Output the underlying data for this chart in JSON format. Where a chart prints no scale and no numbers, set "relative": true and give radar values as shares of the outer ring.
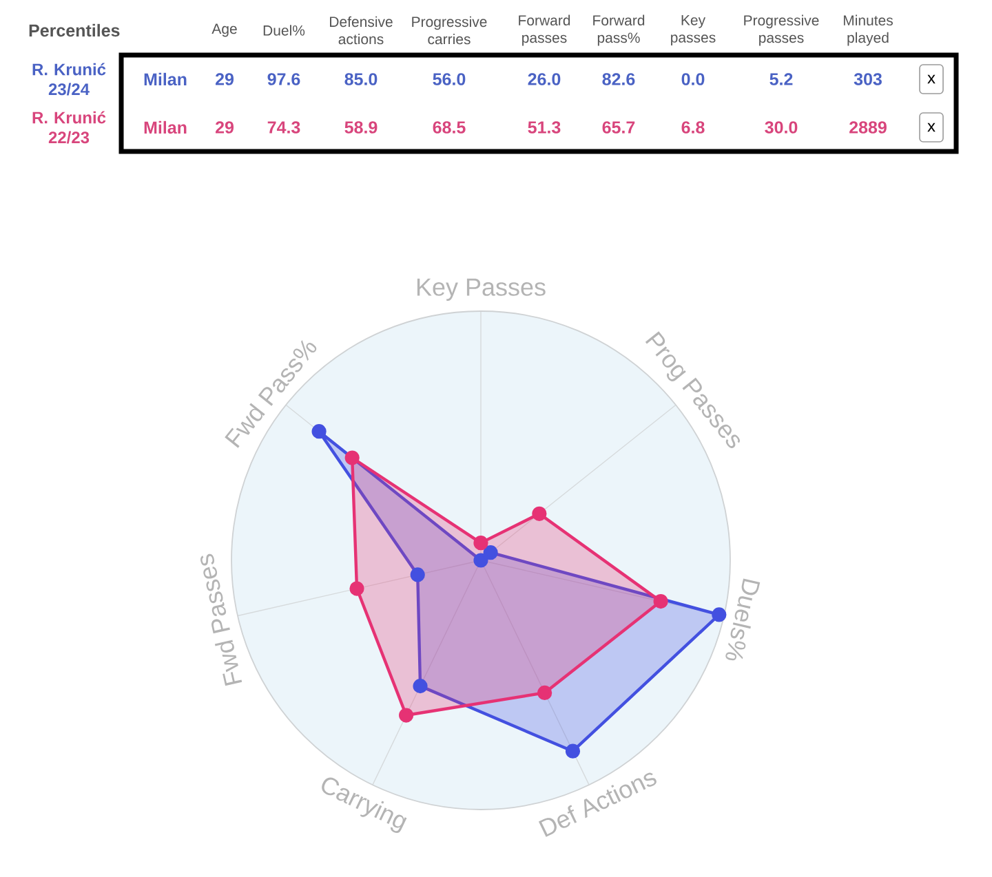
{
  "chart_data": [
    {
      "type": "other",
      "title": "Percentiles",
      "categories": [
        "Age",
        "Duel%",
        "Defensive actions",
        "Progressive carries",
        "Forward passes",
        "Forward pass%",
        "Key passes",
        "Progressive passes",
        "Minutes played"
      ],
      "series": [
        {
          "name": "R. Krunić 23/24",
          "color": "#4a62c4",
          "values": [
            29,
            97.6,
            85.0,
            56.0,
            26.0,
            82.6,
            0.0,
            5.2,
            303
          ],
          "value_labels": [
            "29",
            "97.6",
            "85.0",
            "56.0",
            "26.0",
            "82.6",
            "0.0",
            "5.2",
            "303"
          ]
        },
        {
          "name": "R. Krunić 22/23",
          "color": "#d8457c",
          "values": [
            29,
            74.3,
            58.9,
            68.5,
            51.3,
            65.7,
            6.8,
            30.0,
            2889
          ],
          "value_labels": [
            "29",
            "74.3",
            "58.9",
            "68.5",
            "51.3",
            "65.7",
            "6.8",
            "30.0",
            "2889"
          ]
        }
      ],
      "annotations": [
        "Milan",
        "Milan",
        "x",
        "x"
      ]
    },
    {
      "type": "radar",
      "categories": [
        "Key Passes",
        "Prog Passes",
        "Duels%",
        "Def Actions",
        "Carrying",
        "Fwd Passes",
        "Fwd Pass%"
      ],
      "relative": true,
      "series": [
        {
          "color": "#4350e0",
          "values": [
            0.0,
            0.05,
            0.98,
            0.85,
            0.56,
            0.26,
            0.83
          ]
        },
        {
          "color": "#e63274",
          "values": [
            0.07,
            0.3,
            0.74,
            0.59,
            0.69,
            0.51,
            0.66
          ]
        }
      ],
      "grid": true,
      "marker": "circle",
      "line_style": "solid"
    }
  ]
}
